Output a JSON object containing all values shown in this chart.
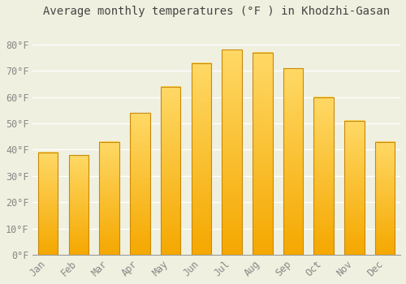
{
  "title": "Average monthly temperatures (°F ) in Khodzhi-Gasan",
  "months": [
    "Jan",
    "Feb",
    "Mar",
    "Apr",
    "May",
    "Jun",
    "Jul",
    "Aug",
    "Sep",
    "Oct",
    "Nov",
    "Dec"
  ],
  "values": [
    39,
    38,
    43,
    54,
    64,
    73,
    78,
    77,
    71,
    60,
    51,
    43
  ],
  "bar_color_bottom": "#F5A800",
  "bar_color_top": "#FFD966",
  "bar_edge_color": "#C8890A",
  "background_color": "#F0F0E0",
  "grid_color": "#FFFFFF",
  "title_fontsize": 10,
  "tick_fontsize": 8.5,
  "ylim": [
    0,
    88
  ],
  "yticks": [
    0,
    10,
    20,
    30,
    40,
    50,
    60,
    70,
    80
  ],
  "ytick_labels": [
    "0°F",
    "10°F",
    "20°F",
    "30°F",
    "40°F",
    "50°F",
    "60°F",
    "70°F",
    "80°F"
  ]
}
